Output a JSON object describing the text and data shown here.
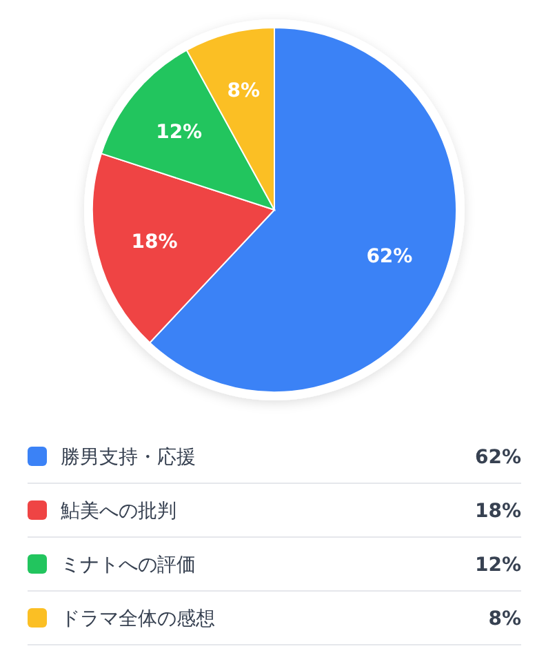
{
  "chart_data": {
    "type": "pie",
    "categories": [
      "勝男支持・応援",
      "鮎美への批判",
      "ミナトへの評価",
      "ドラマ全体の感想"
    ],
    "values": [
      62,
      18,
      12,
      8
    ],
    "colors": [
      "#3b82f6",
      "#ef4444",
      "#22c55e",
      "#fbbf24"
    ],
    "value_labels": [
      "62%",
      "18%",
      "12%",
      "8%"
    ],
    "legend": "bottom"
  }
}
